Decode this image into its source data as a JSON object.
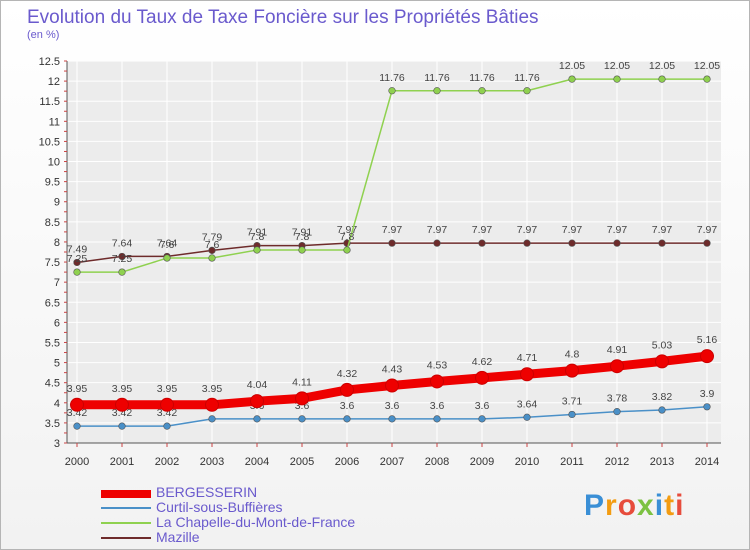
{
  "title": "Evolution du Taux de Taxe Foncière sur les Propriétés Bâties",
  "subtitle": "(en %)",
  "logo": {
    "letters": [
      "P",
      "r",
      "o",
      "x",
      "i",
      "t",
      "i"
    ],
    "colors": [
      "#3a8fd6",
      "#f39c12",
      "#e74c3c",
      "#7cc242",
      "#3a8fd6",
      "#f39c12",
      "#e74c3c"
    ]
  },
  "chart_data": {
    "type": "line",
    "title": "Evolution du Taux de Taxe Foncière sur les Propriétés Bâties",
    "ylabel": "(en %)",
    "ylim": [
      3,
      12.5
    ],
    "yticks": [
      "3",
      "3.5",
      "4",
      "4.5",
      "5",
      "5.5",
      "6",
      "6.5",
      "7",
      "7.5",
      "8",
      "8.5",
      "9",
      "9.5",
      "10",
      "10.5",
      "11",
      "11.5",
      "12",
      "12.5"
    ],
    "categories": [
      "2000",
      "2001",
      "2002",
      "2003",
      "2004",
      "2005",
      "2006",
      "2007",
      "2008",
      "2009",
      "2010",
      "2011",
      "2012",
      "2013",
      "2014"
    ],
    "series": [
      {
        "name": "Mazille",
        "color": "#6e2b2b",
        "values": [
          7.49,
          7.64,
          7.64,
          7.79,
          7.91,
          7.91,
          7.97,
          7.97,
          7.97,
          7.97,
          7.97,
          7.97,
          7.97,
          7.97,
          7.97
        ],
        "labels": [
          "7.49",
          "7.64",
          "7.64",
          "7.79",
          "7.91",
          "7.91",
          "7.97",
          "7.97",
          "7.97",
          "7.97",
          "7.97",
          "7.97",
          "7.97",
          "7.97",
          "7.97"
        ]
      },
      {
        "name": "La Chapelle-du-Mont-de-France",
        "color": "#8fd14f",
        "values": [
          7.25,
          7.25,
          7.6,
          7.6,
          7.8,
          7.8,
          7.8,
          11.76,
          11.76,
          11.76,
          11.76,
          12.05,
          12.05,
          12.05,
          12.05
        ],
        "labels": [
          "7.25",
          "7.25",
          "7.6",
          "7.6",
          "7.8",
          "7.8",
          "7.8",
          "11.76",
          "11.76",
          "11.76",
          "11.76",
          "12.05",
          "12.05",
          "12.05",
          "12.05"
        ]
      },
      {
        "name": "Curtil-sous-Buffières",
        "color": "#4a90c8",
        "values": [
          3.42,
          3.42,
          3.42,
          3.6,
          3.6,
          3.6,
          3.6,
          3.6,
          3.6,
          3.6,
          3.64,
          3.71,
          3.78,
          3.82,
          3.9
        ],
        "labels": [
          "3.42",
          "3.42",
          "3.42",
          "3.6",
          "3.6",
          "3.6",
          "3.6",
          "3.6",
          "3.6",
          "3.6",
          "3.64",
          "3.71",
          "3.78",
          "3.82",
          "3.9"
        ]
      },
      {
        "name": "BERGESSERIN",
        "color": "#ee0000",
        "values": [
          3.95,
          3.95,
          3.95,
          3.95,
          4.04,
          4.11,
          4.32,
          4.43,
          4.53,
          4.62,
          4.71,
          4.8,
          4.91,
          5.03,
          5.16
        ],
        "labels": [
          "3.95",
          "3.95",
          "3.95",
          "3.95",
          "4.04",
          "4.11",
          "4.32",
          "4.43",
          "4.53",
          "4.62",
          "4.71",
          "4.8",
          "4.91",
          "5.03",
          "5.16"
        ]
      }
    ],
    "legend": [
      "BERGESSERIN",
      "Curtil-sous-Buffières",
      "La Chapelle-du-Mont-de-France",
      "Mazille"
    ],
    "legend_colors": [
      "#ee0000",
      "#4a90c8",
      "#8fd14f",
      "#6e2b2b"
    ]
  }
}
